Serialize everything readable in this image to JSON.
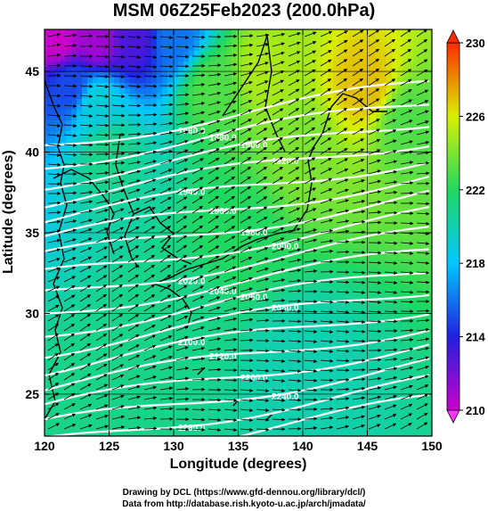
{
  "title": "MSM 06Z25Feb2023 (200.0hPa)",
  "xlabel": "Longitude (degrees)",
  "ylabel": "Latitude  (degrees)",
  "credit_line1": "Drawing by DCL (https://www.gfd-dennou.org/library/dcl/)",
  "credit_line2": "Data from http://database.rish.kyoto-u.ac.jp/arch/jmadata/",
  "chart_data": {
    "type": "heatmap",
    "title": "MSM 06Z25Feb2023 (200.0hPa)",
    "xlabel": "Longitude (degrees)",
    "ylabel": "Latitude  (degrees)",
    "xlim": [
      120,
      150
    ],
    "ylim": [
      22.4,
      47.6
    ],
    "x_ticks": [
      "120",
      "125",
      "130",
      "135",
      "140",
      "145",
      "150"
    ],
    "y_ticks": [
      "25",
      "30",
      "35",
      "40",
      "45"
    ],
    "colorbar": {
      "min": 210,
      "max": 230,
      "tick_labels": [
        "210",
        "214",
        "218",
        "222",
        "226",
        "230"
      ],
      "colors": [
        "#cc00cc",
        "#2020e0",
        "#00c8ff",
        "#20d860",
        "#d8f000",
        "#ff2a00"
      ]
    },
    "field_samples": [
      {
        "lon": 121,
        "lat": 47,
        "value": 210
      },
      {
        "lon": 124,
        "lat": 47,
        "value": 211
      },
      {
        "lon": 127,
        "lat": 47,
        "value": 213
      },
      {
        "lon": 130,
        "lat": 47,
        "value": 216
      },
      {
        "lon": 122,
        "lat": 44,
        "value": 215
      },
      {
        "lon": 124,
        "lat": 43,
        "value": 219
      },
      {
        "lon": 125,
        "lat": 40,
        "value": 221
      },
      {
        "lon": 133,
        "lat": 44,
        "value": 223
      },
      {
        "lon": 137,
        "lat": 45,
        "value": 225
      },
      {
        "lon": 140,
        "lat": 40,
        "value": 224
      },
      {
        "lon": 145,
        "lat": 44,
        "value": 227
      },
      {
        "lon": 148,
        "lat": 42,
        "value": 223
      },
      {
        "lon": 135,
        "lat": 35,
        "value": 222
      },
      {
        "lon": 130,
        "lat": 30,
        "value": 221
      },
      {
        "lon": 140,
        "lat": 27,
        "value": 220
      },
      {
        "lon": 125,
        "lat": 25,
        "value": 221
      }
    ],
    "height_contour_labels": [
      "1860.0",
      "1880.0",
      "1900.0",
      "1920.0",
      "1940.0",
      "1960.0",
      "1980.0",
      "2000.0",
      "2020.0",
      "2040.0",
      "2060.0",
      "2080.0",
      "2100.0",
      "2120.0",
      "2200.0",
      "2240.0",
      "2280.0",
      "2320.0"
    ],
    "wind_direction": "westerly (west to east)"
  }
}
